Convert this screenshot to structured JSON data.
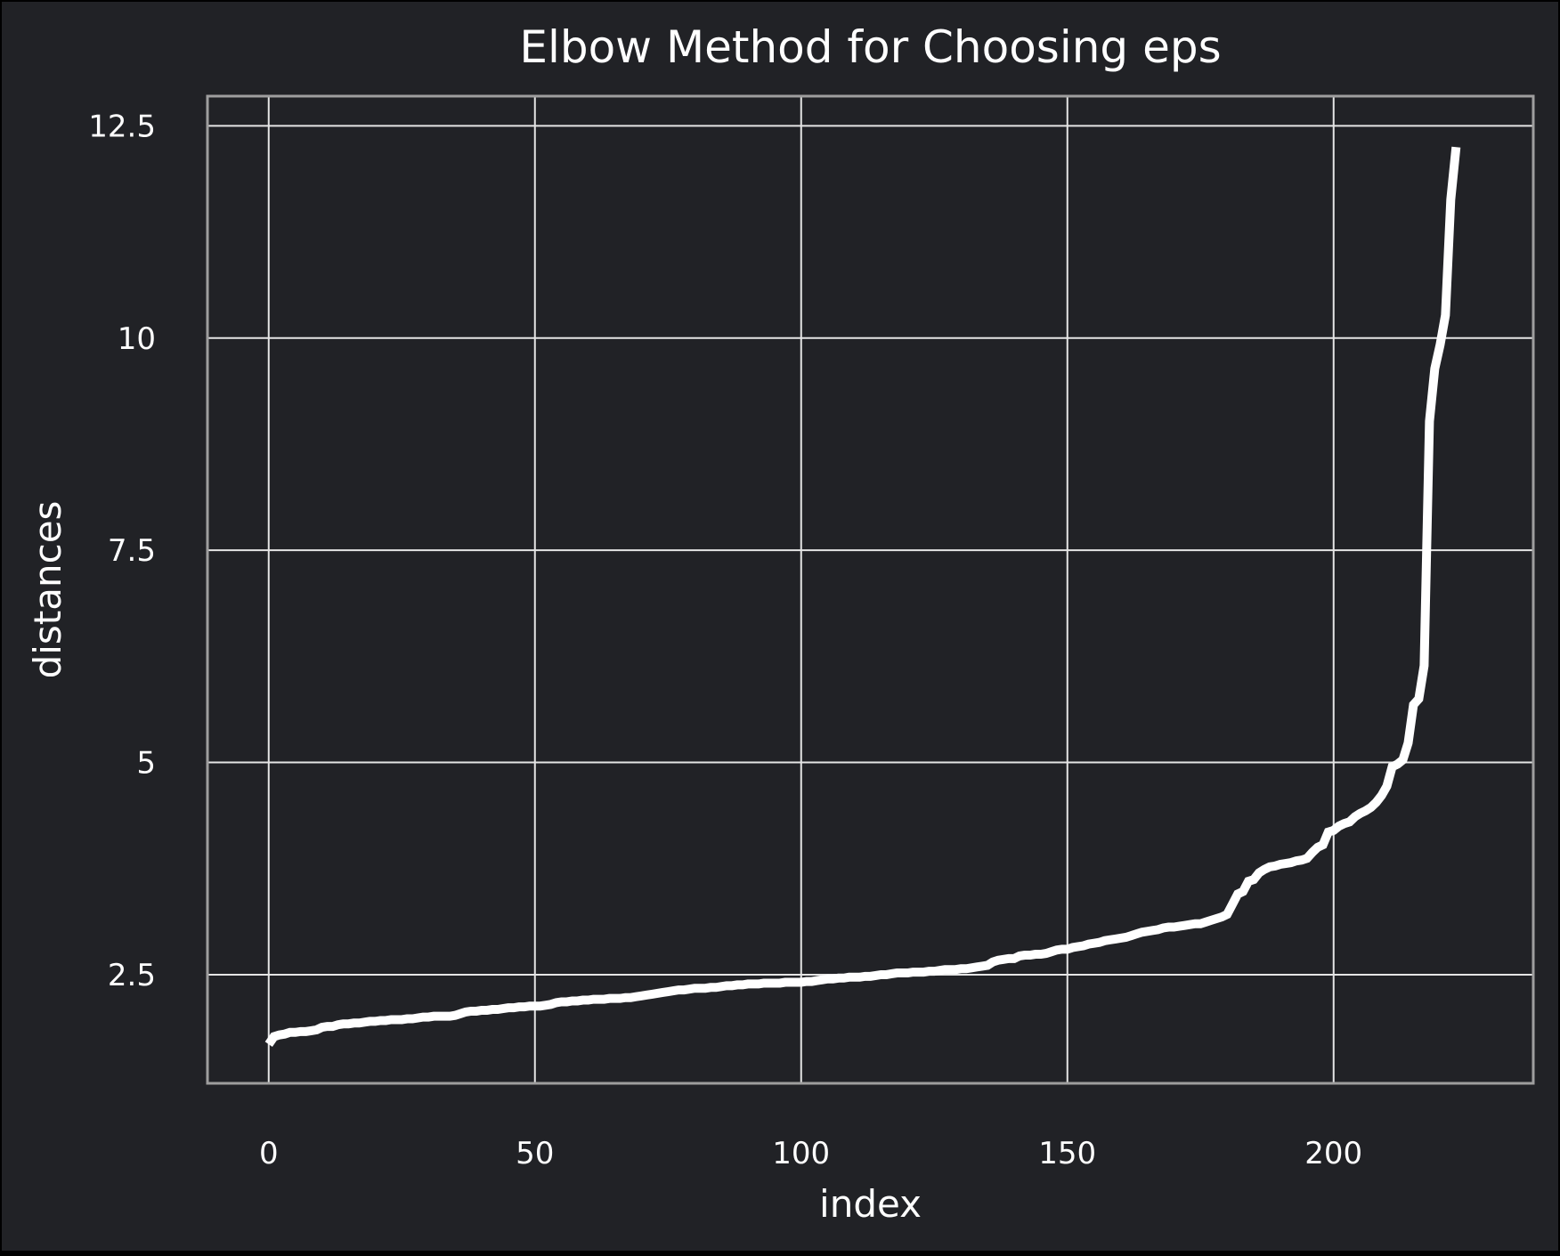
{
  "chart_data": {
    "type": "line",
    "title": "Elbow Method for Choosing eps",
    "xlabel": "index",
    "ylabel": "distances",
    "xlim": [
      -11.5,
      237.5
    ],
    "ylim": [
      1.22,
      12.85
    ],
    "x_ticks": [
      0,
      50,
      100,
      150,
      200
    ],
    "x_tick_labels": [
      "0",
      "50",
      "100",
      "150",
      "200"
    ],
    "y_ticks": [
      2.5,
      5,
      7.5,
      10,
      12.5
    ],
    "y_tick_labels": [
      "2.5",
      "5",
      "7.5",
      "10",
      "12.5"
    ],
    "grid": true,
    "legend": "none",
    "colors": {
      "figure_background": "#212226",
      "plot_background": "#212226",
      "line": "#ffffff",
      "grid": "#e5e5e5",
      "spine": "#9e9e9e",
      "text": "#ffffff",
      "outer_border": "#000000"
    },
    "series": [
      {
        "points": [
          [
            0,
            1.68
          ],
          [
            1,
            1.77
          ],
          [
            2,
            1.79
          ],
          [
            3,
            1.8
          ],
          [
            4,
            1.82
          ],
          [
            5,
            1.82
          ],
          [
            6,
            1.83
          ],
          [
            7,
            1.83
          ],
          [
            8,
            1.84
          ],
          [
            9,
            1.85
          ],
          [
            10,
            1.88
          ],
          [
            11,
            1.89
          ],
          [
            12,
            1.89
          ],
          [
            13,
            1.91
          ],
          [
            14,
            1.92
          ],
          [
            15,
            1.92
          ],
          [
            16,
            1.93
          ],
          [
            17,
            1.93
          ],
          [
            18,
            1.94
          ],
          [
            19,
            1.95
          ],
          [
            20,
            1.95
          ],
          [
            21,
            1.96
          ],
          [
            22,
            1.96
          ],
          [
            23,
            1.97
          ],
          [
            24,
            1.97
          ],
          [
            25,
            1.97
          ],
          [
            26,
            1.98
          ],
          [
            27,
            1.98
          ],
          [
            28,
            1.99
          ],
          [
            29,
            2.0
          ],
          [
            30,
            2.0
          ],
          [
            31,
            2.01
          ],
          [
            32,
            2.01
          ],
          [
            33,
            2.01
          ],
          [
            34,
            2.01
          ],
          [
            35,
            2.02
          ],
          [
            36,
            2.04
          ],
          [
            37,
            2.06
          ],
          [
            38,
            2.07
          ],
          [
            39,
            2.07
          ],
          [
            40,
            2.08
          ],
          [
            41,
            2.08
          ],
          [
            42,
            2.09
          ],
          [
            43,
            2.09
          ],
          [
            44,
            2.1
          ],
          [
            45,
            2.11
          ],
          [
            46,
            2.11
          ],
          [
            47,
            2.12
          ],
          [
            48,
            2.12
          ],
          [
            49,
            2.13
          ],
          [
            50,
            2.13
          ],
          [
            51,
            2.13
          ],
          [
            52,
            2.14
          ],
          [
            53,
            2.15
          ],
          [
            54,
            2.17
          ],
          [
            55,
            2.18
          ],
          [
            56,
            2.18
          ],
          [
            57,
            2.19
          ],
          [
            58,
            2.19
          ],
          [
            59,
            2.2
          ],
          [
            60,
            2.2
          ],
          [
            61,
            2.21
          ],
          [
            62,
            2.21
          ],
          [
            63,
            2.21
          ],
          [
            64,
            2.22
          ],
          [
            65,
            2.22
          ],
          [
            66,
            2.22
          ],
          [
            67,
            2.23
          ],
          [
            68,
            2.23
          ],
          [
            69,
            2.24
          ],
          [
            70,
            2.25
          ],
          [
            71,
            2.26
          ],
          [
            72,
            2.27
          ],
          [
            73,
            2.28
          ],
          [
            74,
            2.29
          ],
          [
            75,
            2.3
          ],
          [
            76,
            2.31
          ],
          [
            77,
            2.32
          ],
          [
            78,
            2.32
          ],
          [
            79,
            2.33
          ],
          [
            80,
            2.34
          ],
          [
            81,
            2.34
          ],
          [
            82,
            2.34
          ],
          [
            83,
            2.35
          ],
          [
            84,
            2.35
          ],
          [
            85,
            2.36
          ],
          [
            86,
            2.37
          ],
          [
            87,
            2.37
          ],
          [
            88,
            2.38
          ],
          [
            89,
            2.38
          ],
          [
            90,
            2.39
          ],
          [
            91,
            2.39
          ],
          [
            92,
            2.39
          ],
          [
            93,
            2.4
          ],
          [
            94,
            2.4
          ],
          [
            95,
            2.4
          ],
          [
            96,
            2.4
          ],
          [
            97,
            2.41
          ],
          [
            98,
            2.41
          ],
          [
            99,
            2.41
          ],
          [
            100,
            2.41
          ],
          [
            101,
            2.42
          ],
          [
            102,
            2.42
          ],
          [
            103,
            2.43
          ],
          [
            104,
            2.44
          ],
          [
            105,
            2.45
          ],
          [
            106,
            2.45
          ],
          [
            107,
            2.46
          ],
          [
            108,
            2.46
          ],
          [
            109,
            2.47
          ],
          [
            110,
            2.47
          ],
          [
            111,
            2.47
          ],
          [
            112,
            2.48
          ],
          [
            113,
            2.48
          ],
          [
            114,
            2.49
          ],
          [
            115,
            2.5
          ],
          [
            116,
            2.5
          ],
          [
            117,
            2.51
          ],
          [
            118,
            2.52
          ],
          [
            119,
            2.52
          ],
          [
            120,
            2.52
          ],
          [
            121,
            2.53
          ],
          [
            122,
            2.53
          ],
          [
            123,
            2.53
          ],
          [
            124,
            2.54
          ],
          [
            125,
            2.54
          ],
          [
            126,
            2.55
          ],
          [
            127,
            2.56
          ],
          [
            128,
            2.56
          ],
          [
            129,
            2.56
          ],
          [
            130,
            2.57
          ],
          [
            131,
            2.57
          ],
          [
            132,
            2.58
          ],
          [
            133,
            2.59
          ],
          [
            134,
            2.6
          ],
          [
            135,
            2.61
          ],
          [
            136,
            2.65
          ],
          [
            137,
            2.67
          ],
          [
            138,
            2.68
          ],
          [
            139,
            2.69
          ],
          [
            140,
            2.69
          ],
          [
            141,
            2.72
          ],
          [
            142,
            2.73
          ],
          [
            143,
            2.73
          ],
          [
            144,
            2.74
          ],
          [
            145,
            2.74
          ],
          [
            146,
            2.75
          ],
          [
            147,
            2.77
          ],
          [
            148,
            2.79
          ],
          [
            149,
            2.8
          ],
          [
            150,
            2.8
          ],
          [
            151,
            2.82
          ],
          [
            152,
            2.83
          ],
          [
            153,
            2.84
          ],
          [
            154,
            2.86
          ],
          [
            155,
            2.87
          ],
          [
            156,
            2.88
          ],
          [
            157,
            2.9
          ],
          [
            158,
            2.91
          ],
          [
            159,
            2.92
          ],
          [
            160,
            2.93
          ],
          [
            161,
            2.94
          ],
          [
            162,
            2.96
          ],
          [
            163,
            2.98
          ],
          [
            164,
            3.0
          ],
          [
            165,
            3.01
          ],
          [
            166,
            3.02
          ],
          [
            167,
            3.03
          ],
          [
            168,
            3.05
          ],
          [
            169,
            3.06
          ],
          [
            170,
            3.06
          ],
          [
            171,
            3.07
          ],
          [
            172,
            3.08
          ],
          [
            173,
            3.09
          ],
          [
            174,
            3.1
          ],
          [
            175,
            3.1
          ],
          [
            176,
            3.12
          ],
          [
            177,
            3.14
          ],
          [
            178,
            3.16
          ],
          [
            179,
            3.18
          ],
          [
            180,
            3.21
          ],
          [
            181,
            3.33
          ],
          [
            182,
            3.45
          ],
          [
            183,
            3.48
          ],
          [
            184,
            3.6
          ],
          [
            185,
            3.62
          ],
          [
            186,
            3.7
          ],
          [
            187,
            3.74
          ],
          [
            188,
            3.77
          ],
          [
            189,
            3.78
          ],
          [
            190,
            3.8
          ],
          [
            191,
            3.81
          ],
          [
            192,
            3.82
          ],
          [
            193,
            3.84
          ],
          [
            194,
            3.85
          ],
          [
            195,
            3.87
          ],
          [
            196,
            3.94
          ],
          [
            197,
            4.0
          ],
          [
            198,
            4.03
          ],
          [
            199,
            4.18
          ],
          [
            200,
            4.2
          ],
          [
            201,
            4.25
          ],
          [
            202,
            4.28
          ],
          [
            203,
            4.3
          ],
          [
            204,
            4.36
          ],
          [
            205,
            4.4
          ],
          [
            206,
            4.43
          ],
          [
            207,
            4.47
          ],
          [
            208,
            4.53
          ],
          [
            209,
            4.61
          ],
          [
            210,
            4.72
          ],
          [
            211,
            4.95
          ],
          [
            212,
            4.98
          ],
          [
            213,
            5.03
          ],
          [
            214,
            5.23
          ],
          [
            215,
            5.68
          ],
          [
            216,
            5.75
          ],
          [
            217,
            6.14
          ],
          [
            218,
            9.02
          ],
          [
            219,
            9.64
          ],
          [
            220,
            9.92
          ],
          [
            221,
            10.27
          ],
          [
            222,
            11.63
          ],
          [
            223,
            12.25
          ]
        ]
      }
    ]
  }
}
